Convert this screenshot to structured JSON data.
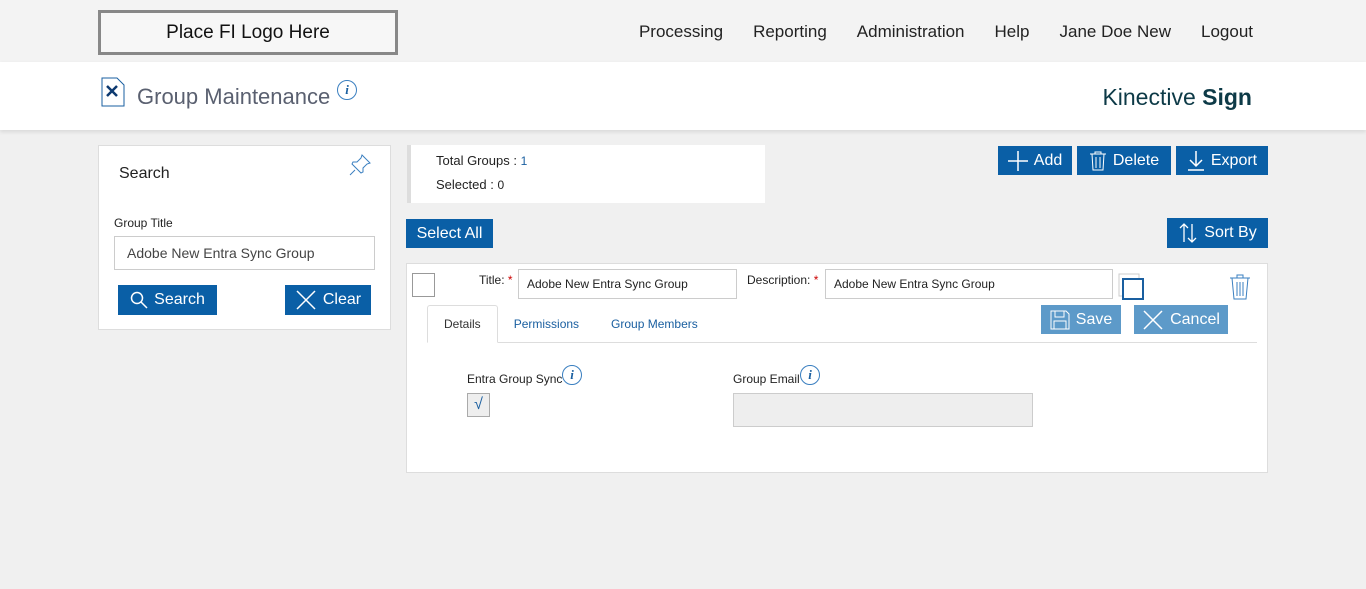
{
  "logo": "Place FI Logo Here",
  "nav": [
    "Processing",
    "Reporting",
    "Administration",
    "Help",
    "Jane Doe New",
    "Logout"
  ],
  "page_title": "Group Maintenance",
  "brand": {
    "light": "Kinective",
    "bold": "Sign"
  },
  "search": {
    "heading": "Search",
    "field_label": "Group Title",
    "field_value": "Adobe New Entra Sync Group",
    "search_label": "Search",
    "clear_label": "Clear"
  },
  "summary": {
    "total_label": "Total Groups :",
    "total_value": "1",
    "selected_label": "Selected :",
    "selected_value": "0"
  },
  "toolbar": {
    "add": "Add",
    "delete": "Delete",
    "export": "Export",
    "select_all": "Select All",
    "sort_by": "Sort By"
  },
  "group": {
    "title_label": "Title:",
    "title_value": "Adobe New Entra Sync Group",
    "desc_label": "Description:",
    "desc_value": "Adobe New Entra Sync Group",
    "tabs": [
      "Details",
      "Permissions",
      "Group Members"
    ],
    "save": "Save",
    "cancel": "Cancel",
    "entra_label": "Entra Group Sync",
    "entra_checked": true,
    "email_label": "Group Email",
    "email_value": ""
  },
  "colors": {
    "primary": "#0a5fa6",
    "disabled": "#5d9ac9"
  }
}
